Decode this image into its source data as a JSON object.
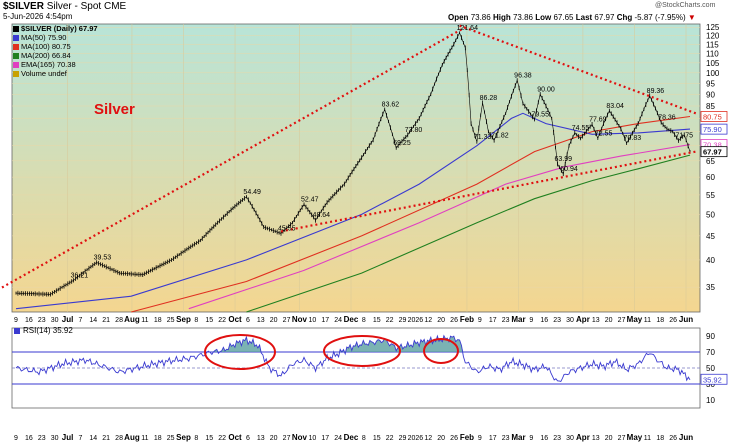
{
  "header": {
    "symbol": "$SILVER",
    "name": "Silver - Spot",
    "exchange": "CME",
    "date": "5-Jun-2026 4:54pm",
    "open_label": "Open",
    "open": "73.86",
    "high_label": "High",
    "high": "73.86",
    "low_label": "Low",
    "low": "67.65",
    "last_label": "Last",
    "last": "67.97",
    "chg_label": "Chg",
    "chg": "-5.87 (-7.95%)",
    "watermark": "@StockCharts.com"
  },
  "legend": [
    {
      "text": "$SILVER (Daily) 67.97",
      "color": "#000000"
    },
    {
      "text": "MA(50) 75.90",
      "color": "#3a3ad0"
    },
    {
      "text": "MA(100) 80.75",
      "color": "#e03020"
    },
    {
      "text": "MA(200) 66.84",
      "color": "#208020"
    },
    {
      "text": "EMA(165) 70.38",
      "color": "#e040c0"
    },
    {
      "text": "Volume undef",
      "color": "#c8a000"
    }
  ],
  "annotation_title": "Silver",
  "colors": {
    "price": "#000000",
    "ma50": "#3a3ad0",
    "ma100": "#e03020",
    "ma200": "#208020",
    "ema165": "#e040c0",
    "trendline": "#e01010",
    "rsi": "#3a3ad0",
    "rsi_fill": "#5aa0a0",
    "bg_top": "#b8e4d8",
    "bg_bottom": "#f4d690"
  },
  "chart_data": [
    {
      "type": "line",
      "title": "Silver - Spot",
      "x_ticks": [
        "9",
        "16",
        "23",
        "30",
        "Jul",
        "7",
        "14",
        "21",
        "28",
        "Aug",
        "11",
        "18",
        "25",
        "Sep",
        "8",
        "15",
        "22",
        "Oct",
        "6",
        "13",
        "20",
        "27",
        "Nov",
        "10",
        "17",
        "24",
        "Dec",
        "8",
        "15",
        "22",
        "29",
        "2026",
        "12",
        "20",
        "26",
        "Feb",
        "9",
        "17",
        "23",
        "Mar",
        "9",
        "16",
        "23",
        "30",
        "Apr",
        "13",
        "20",
        "27",
        "May",
        "11",
        "18",
        "26",
        "Jun"
      ],
      "y_ticks": [
        35,
        40,
        45,
        50,
        55,
        60,
        65,
        70,
        75,
        80,
        85,
        90,
        95,
        100,
        105,
        110,
        115,
        120,
        125
      ],
      "ylim": [
        31,
        127
      ],
      "y_scale": "log",
      "price_anchors": [
        [
          0,
          34
        ],
        [
          6,
          33.8
        ],
        [
          10,
          36.2
        ],
        [
          14,
          39.5
        ],
        [
          18,
          37.5
        ],
        [
          22,
          37.2
        ],
        [
          27,
          40
        ],
        [
          32,
          44
        ],
        [
          35,
          48
        ],
        [
          38,
          52
        ],
        [
          40,
          54.5
        ],
        [
          43,
          47
        ],
        [
          46,
          45.55
        ],
        [
          48,
          48
        ],
        [
          50,
          52.5
        ],
        [
          52,
          48.6
        ],
        [
          54,
          53
        ],
        [
          57,
          58
        ],
        [
          60,
          66
        ],
        [
          62,
          72
        ],
        [
          64,
          83.6
        ],
        [
          66,
          69.25
        ],
        [
          68,
          73.8
        ],
        [
          70,
          80
        ],
        [
          72,
          90
        ],
        [
          74,
          104
        ],
        [
          76,
          115
        ],
        [
          77,
          121.64
        ],
        [
          78,
          113
        ],
        [
          79,
          78
        ],
        [
          80,
          71.33
        ],
        [
          81,
          86.28
        ],
        [
          82,
          75
        ],
        [
          83,
          71.82
        ],
        [
          85,
          82
        ],
        [
          87,
          96.38
        ],
        [
          88,
          86
        ],
        [
          90,
          79.55
        ],
        [
          91,
          90
        ],
        [
          93,
          80
        ],
        [
          94,
          63.99
        ],
        [
          95,
          60.94
        ],
        [
          96,
          70
        ],
        [
          97,
          74.55
        ],
        [
          98,
          72.5
        ],
        [
          100,
          77.69
        ],
        [
          101,
          72.55
        ],
        [
          102,
          78
        ],
        [
          103,
          83.04
        ],
        [
          105,
          76
        ],
        [
          106,
          70.83
        ],
        [
          108,
          78
        ],
        [
          110,
          89.36
        ],
        [
          111,
          84
        ],
        [
          112,
          78.36
        ],
        [
          113,
          76
        ],
        [
          114,
          75
        ],
        [
          115,
          71.75
        ],
        [
          116,
          73.86
        ],
        [
          117,
          67.97
        ]
      ],
      "ma_anchors": {
        "ma50": [
          [
            0,
            31.5
          ],
          [
            20,
            33.5
          ],
          [
            40,
            40
          ],
          [
            60,
            50
          ],
          [
            70,
            58
          ],
          [
            80,
            70
          ],
          [
            86,
            80
          ],
          [
            88,
            82
          ],
          [
            92,
            78
          ],
          [
            100,
            74
          ],
          [
            108,
            74.5
          ],
          [
            117,
            75.9
          ]
        ],
        "ma100": [
          [
            20,
            31
          ],
          [
            40,
            36
          ],
          [
            60,
            45
          ],
          [
            80,
            58
          ],
          [
            90,
            68
          ],
          [
            100,
            75
          ],
          [
            108,
            78
          ],
          [
            117,
            80.75
          ]
        ],
        "ma200": [
          [
            40,
            31
          ],
          [
            60,
            37.5
          ],
          [
            80,
            48
          ],
          [
            90,
            54
          ],
          [
            100,
            59
          ],
          [
            108,
            62.5
          ],
          [
            117,
            66.84
          ]
        ],
        "ema165": [
          [
            30,
            31.5
          ],
          [
            50,
            38
          ],
          [
            70,
            48
          ],
          [
            85,
            58
          ],
          [
            95,
            63
          ],
          [
            105,
            66.5
          ],
          [
            117,
            70.38
          ]
        ]
      },
      "data_labels": [
        {
          "text": "39.53",
          "x": 14,
          "y": 39.53
        },
        {
          "text": "36.21",
          "x": 10,
          "y": 36.21
        },
        {
          "text": "54.49",
          "x": 40,
          "y": 54.49
        },
        {
          "text": "45.55",
          "x": 46,
          "y": 45.55
        },
        {
          "text": "52.47",
          "x": 50,
          "y": 52.47
        },
        {
          "text": "48.64",
          "x": 52,
          "y": 48.64
        },
        {
          "text": "83.62",
          "x": 64,
          "y": 83.62
        },
        {
          "text": "69.25",
          "x": 66,
          "y": 69.25
        },
        {
          "text": "73.80",
          "x": 68,
          "y": 73.8
        },
        {
          "text": "121.64",
          "x": 77,
          "y": 121.64
        },
        {
          "text": "86.28",
          "x": 81,
          "y": 86.28
        },
        {
          "text": "71.33",
          "x": 80,
          "y": 71.33
        },
        {
          "text": "71.82",
          "x": 83,
          "y": 71.82
        },
        {
          "text": "63.99",
          "x": 94,
          "y": 63.99
        },
        {
          "text": "96.38",
          "x": 87,
          "y": 96.38
        },
        {
          "text": "90.00",
          "x": 91,
          "y": 90
        },
        {
          "text": "79.55",
          "x": 90,
          "y": 79.55
        },
        {
          "text": "74.55",
          "x": 97,
          "y": 74.55
        },
        {
          "text": "60.94",
          "x": 95,
          "y": 60.94
        },
        {
          "text": "77.69",
          "x": 100,
          "y": 77.69
        },
        {
          "text": "72.55",
          "x": 101,
          "y": 72.55
        },
        {
          "text": "83.04",
          "x": 103,
          "y": 83.04
        },
        {
          "text": "70.83",
          "x": 106,
          "y": 70.83
        },
        {
          "text": "89.36",
          "x": 110,
          "y": 89.36
        },
        {
          "text": "78.36",
          "x": 112,
          "y": 78.36
        },
        {
          "text": "71.75",
          "x": 115,
          "y": 71.75
        }
      ],
      "value_tags": [
        {
          "text": "80.75",
          "y": 80.75,
          "color": "#e03020"
        },
        {
          "text": "75.90",
          "y": 75.9,
          "color": "#3a3ad0"
        },
        {
          "text": "70.38",
          "y": 70.38,
          "color": "#e040c0"
        },
        {
          "text": "67.97",
          "y": 67.97,
          "color": "#000000"
        }
      ],
      "trendlines": [
        {
          "from": [
            -10,
            31
          ],
          "to": [
            78,
            125
          ]
        },
        {
          "from": [
            77,
            126
          ],
          "to": [
            118,
            82
          ]
        },
        {
          "from": [
            46,
            46
          ],
          "to": [
            118,
            68
          ]
        }
      ]
    },
    {
      "type": "line",
      "title": "RSI(14) 35.92",
      "ylim": [
        0,
        100
      ],
      "y_ticks": [
        10,
        30,
        50,
        70,
        90
      ],
      "reference_lines": [
        30,
        50,
        70
      ],
      "x_ticks": [
        "9",
        "16",
        "23",
        "30",
        "Jul",
        "7",
        "14",
        "21",
        "28",
        "Aug",
        "11",
        "18",
        "25",
        "Sep",
        "8",
        "15",
        "22",
        "Oct",
        "6",
        "13",
        "20",
        "27",
        "Nov",
        "10",
        "17",
        "24",
        "Dec",
        "8",
        "15",
        "22",
        "29",
        "2026",
        "12",
        "20",
        "26",
        "Feb",
        "9",
        "17",
        "23",
        "Mar",
        "9",
        "16",
        "23",
        "30",
        "Apr",
        "13",
        "20",
        "27",
        "May",
        "11",
        "18",
        "26",
        "Jun"
      ],
      "rsi_anchors": [
        [
          0,
          50
        ],
        [
          4,
          45
        ],
        [
          8,
          55
        ],
        [
          12,
          60
        ],
        [
          14,
          55
        ],
        [
          18,
          45
        ],
        [
          22,
          52
        ],
        [
          26,
          58
        ],
        [
          30,
          62
        ],
        [
          34,
          70
        ],
        [
          36,
          72
        ],
        [
          38,
          80
        ],
        [
          40,
          85
        ],
        [
          42,
          78
        ],
        [
          44,
          50
        ],
        [
          46,
          40
        ],
        [
          48,
          55
        ],
        [
          50,
          60
        ],
        [
          52,
          50
        ],
        [
          54,
          62
        ],
        [
          56,
          68
        ],
        [
          58,
          76
        ],
        [
          60,
          80
        ],
        [
          62,
          82
        ],
        [
          64,
          85
        ],
        [
          66,
          75
        ],
        [
          68,
          78
        ],
        [
          70,
          82
        ],
        [
          72,
          84
        ],
        [
          74,
          86
        ],
        [
          76,
          88
        ],
        [
          77,
          84
        ],
        [
          78,
          58
        ],
        [
          80,
          45
        ],
        [
          82,
          52
        ],
        [
          84,
          48
        ],
        [
          86,
          58
        ],
        [
          88,
          54
        ],
        [
          90,
          48
        ],
        [
          92,
          52
        ],
        [
          94,
          32
        ],
        [
          96,
          45
        ],
        [
          98,
          50
        ],
        [
          100,
          55
        ],
        [
          102,
          52
        ],
        [
          104,
          58
        ],
        [
          106,
          48
        ],
        [
          108,
          55
        ],
        [
          110,
          70
        ],
        [
          111,
          62
        ],
        [
          113,
          50
        ],
        [
          115,
          48
        ],
        [
          117,
          35.92
        ]
      ],
      "value_tag": "35.92"
    }
  ]
}
